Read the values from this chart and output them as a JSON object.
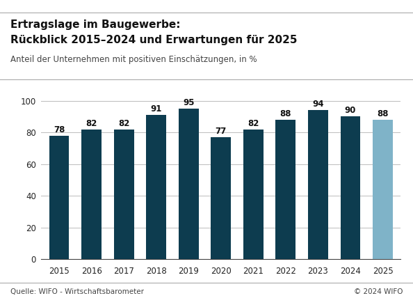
{
  "title_line1": "Ertragslage im Baugewerbe:",
  "title_line2": "Rückblick 2015–2024 und Erwartungen für 2025",
  "subtitle": "Anteil der Unternehmen mit positiven Einschätzungen, in %",
  "categories": [
    "2015",
    "2016",
    "2017",
    "2018",
    "2019",
    "2020",
    "2021",
    "2022",
    "2023",
    "2024",
    "2025"
  ],
  "values": [
    78,
    82,
    82,
    91,
    95,
    77,
    82,
    88,
    94,
    90,
    88
  ],
  "bar_colors": [
    "#0d3c4f",
    "#0d3c4f",
    "#0d3c4f",
    "#0d3c4f",
    "#0d3c4f",
    "#0d3c4f",
    "#0d3c4f",
    "#0d3c4f",
    "#0d3c4f",
    "#0d3c4f",
    "#7fb3c8"
  ],
  "ylim": [
    0,
    100
  ],
  "yticks": [
    0,
    20,
    40,
    60,
    80,
    100
  ],
  "footer_left": "Quelle: WIFO - Wirtschaftsbarometer",
  "footer_right": "© 2024 WIFO",
  "background_color": "#ffffff",
  "grid_color": "#bbbbbb",
  "title_fontsize": 11.0,
  "subtitle_fontsize": 8.5,
  "bar_label_fontsize": 8.5,
  "tick_fontsize": 8.5,
  "footer_fontsize": 7.5,
  "bar_width": 0.62
}
